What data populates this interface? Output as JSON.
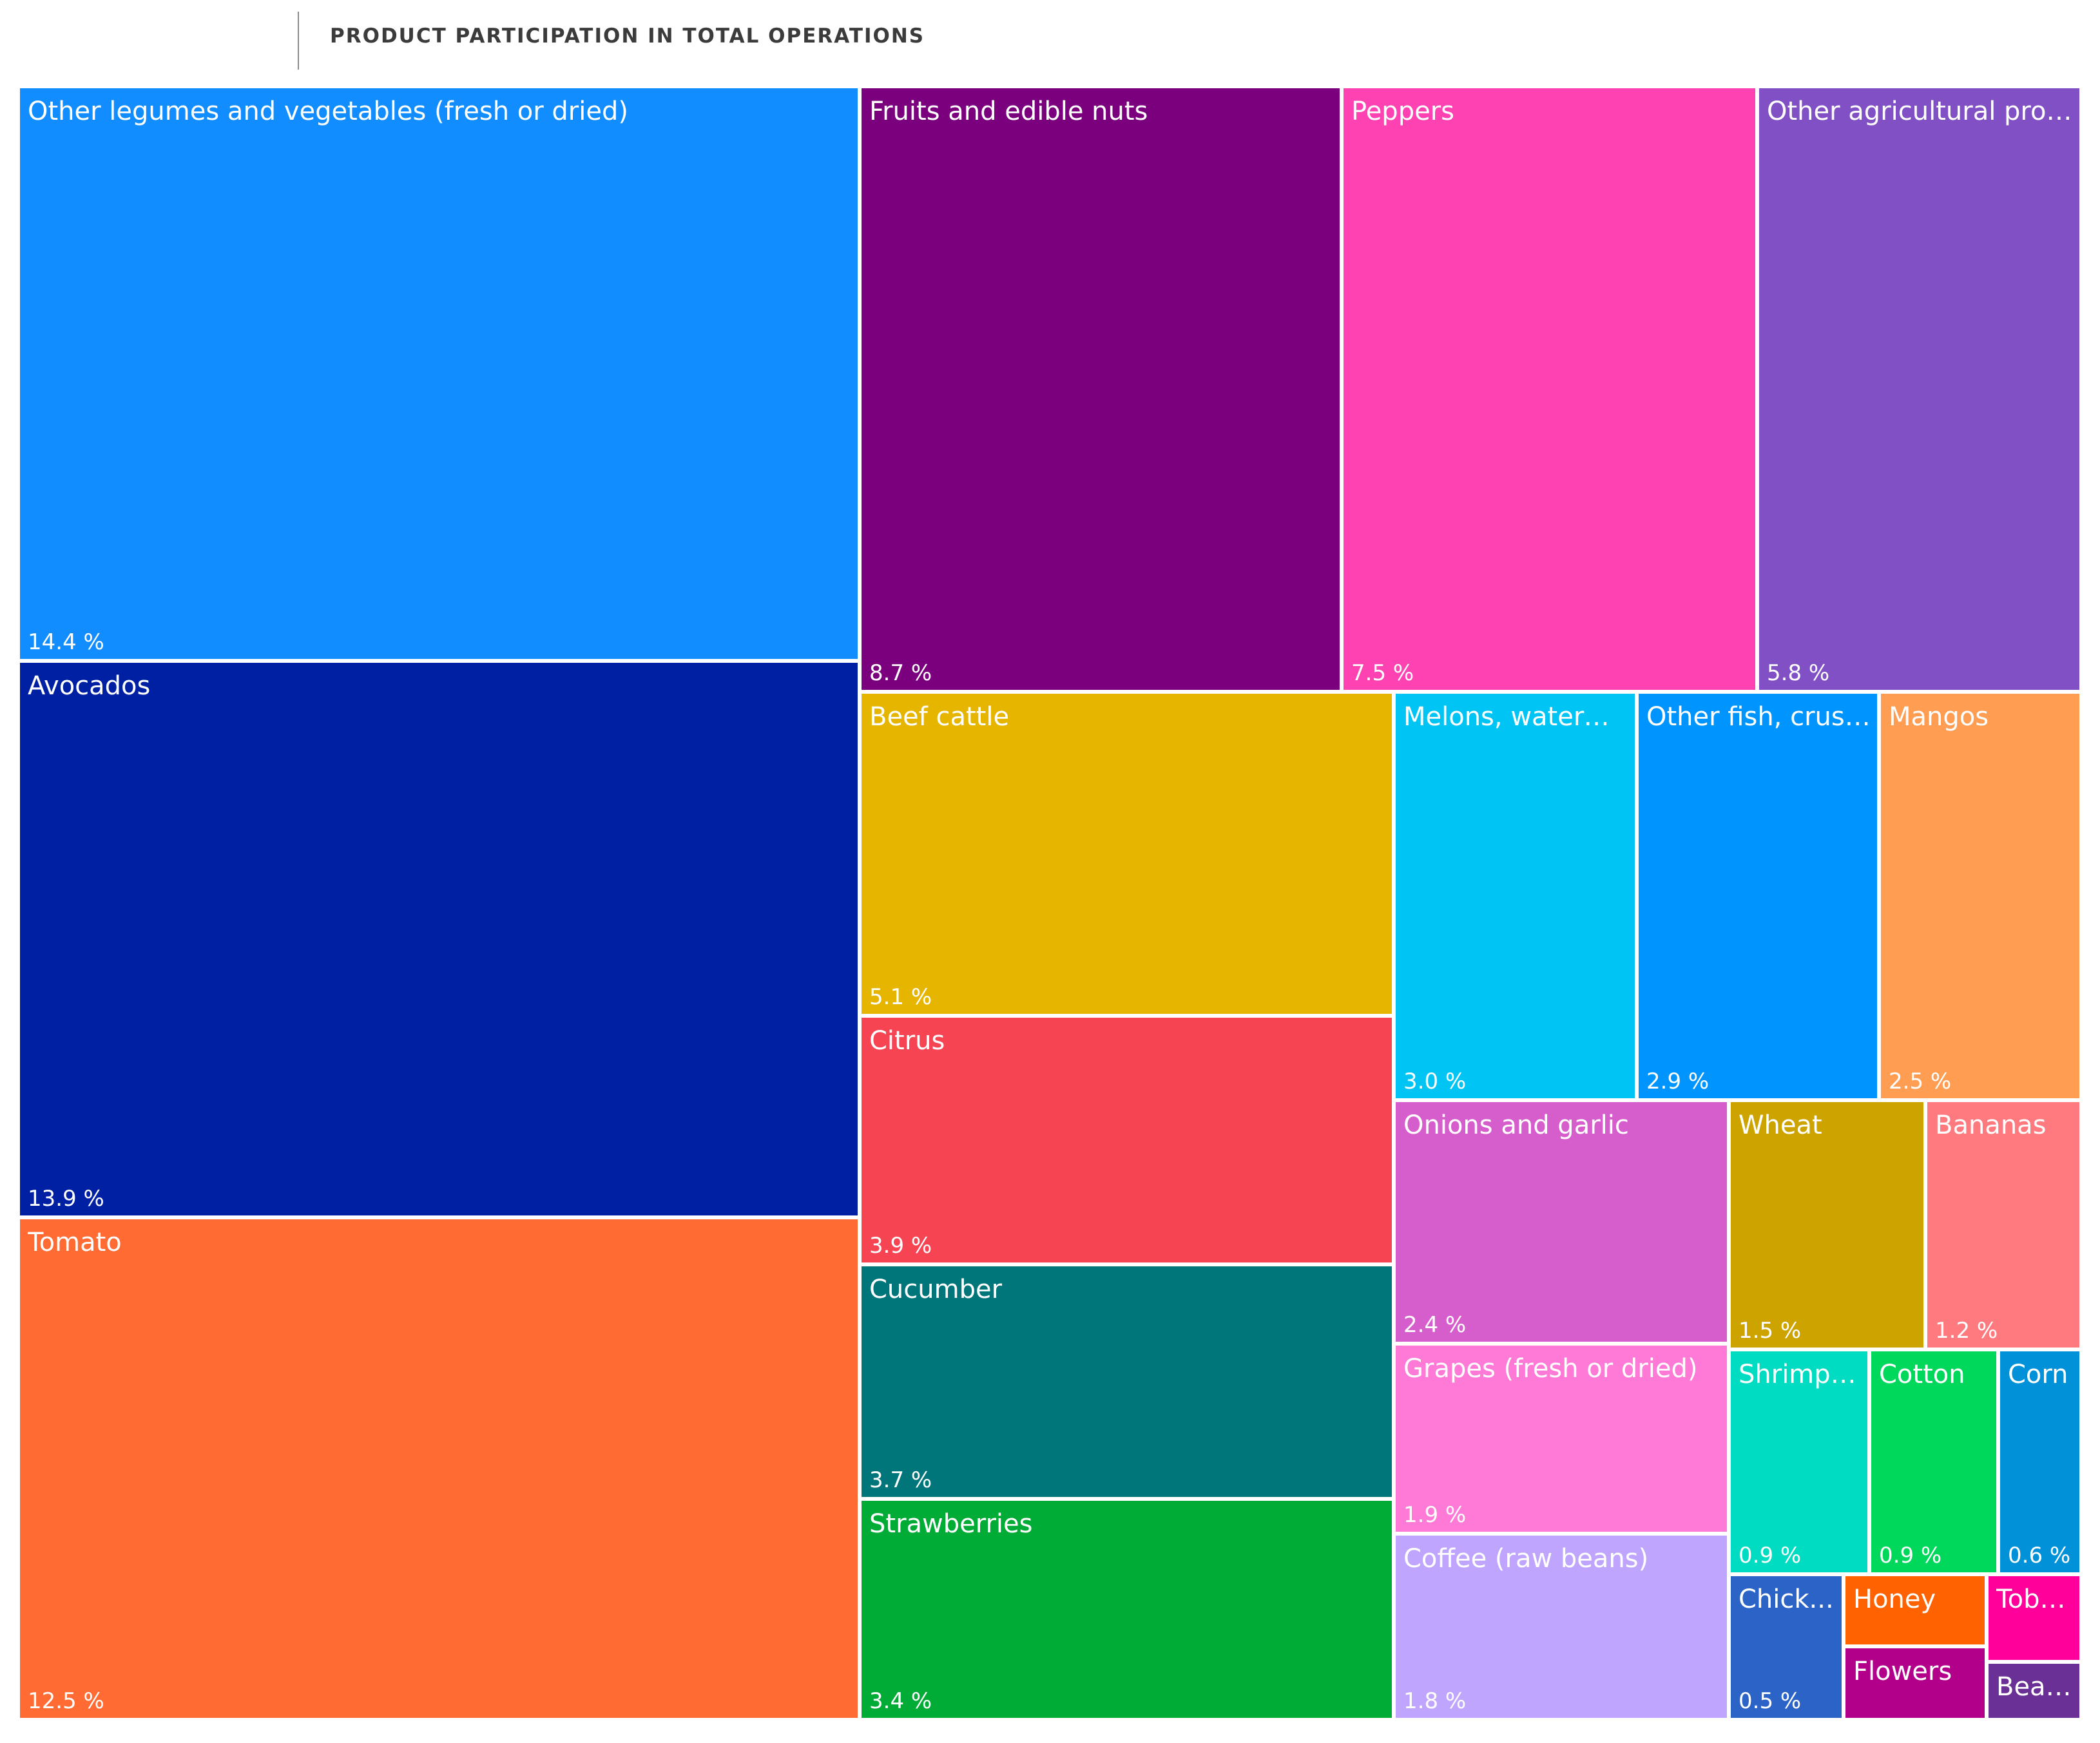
{
  "header": {
    "title": "PRODUCT PARTICIPATION IN TOTAL OPERATIONS"
  },
  "chart_data": {
    "type": "treemap",
    "title": "PRODUCT PARTICIPATION IN TOTAL OPERATIONS",
    "unit": "%",
    "items": [
      {
        "name": "Other legumes and vegetables (fresh or dried)",
        "label": "Other legumes and vegetables (fresh or dried)",
        "value": 14.4,
        "value_label": "14.4 %",
        "color": "#118DFF"
      },
      {
        "name": "Avocados",
        "label": "Avocados",
        "value": 13.9,
        "value_label": "13.9 %",
        "color": "#0020A4"
      },
      {
        "name": "Tomato",
        "label": "Tomato",
        "value": 12.5,
        "value_label": "12.5 %",
        "color": "#FF6B33"
      },
      {
        "name": "Fruits and edible nuts",
        "label": "Fruits and edible nuts",
        "value": 8.7,
        "value_label": "8.7 %",
        "color": "#7B007D"
      },
      {
        "name": "Peppers",
        "label": "Peppers",
        "value": 7.5,
        "value_label": "7.5 %",
        "color": "#FF42B1"
      },
      {
        "name": "Other agricultural products",
        "label": "Other agricultural produ...",
        "value": 5.8,
        "value_label": "5.8 %",
        "color": "#8150C5"
      },
      {
        "name": "Beef cattle",
        "label": "Beef cattle",
        "value": 5.1,
        "value_label": "5.1 %",
        "color": "#E6B500"
      },
      {
        "name": "Citrus",
        "label": "Citrus",
        "value": 3.9,
        "value_label": "3.9 %",
        "color": "#F64453"
      },
      {
        "name": "Cucumber",
        "label": "Cucumber",
        "value": 3.7,
        "value_label": "3.7 %",
        "color": "#00757A"
      },
      {
        "name": "Strawberries",
        "label": "Strawberries",
        "value": 3.4,
        "value_label": "3.4 %",
        "color": "#00AC35"
      },
      {
        "name": "Melons, watermelons",
        "label": "Melons, waterme...",
        "value": 3.0,
        "value_label": "3.0 %",
        "color": "#00C5F4"
      },
      {
        "name": "Other fish, crustaceans",
        "label": "Other fish, crusta...",
        "value": 2.9,
        "value_label": "2.9 %",
        "color": "#0094FF"
      },
      {
        "name": "Mangos",
        "label": "Mangos",
        "value": 2.5,
        "value_label": "2.5 %",
        "color": "#FF9E52"
      },
      {
        "name": "Onions and garlic",
        "label": "Onions and garlic",
        "value": 2.4,
        "value_label": "2.4 %",
        "color": "#D65ECC"
      },
      {
        "name": "Grapes (fresh or dried)",
        "label": "Grapes (fresh or dried)",
        "value": 1.9,
        "value_label": "1.9 %",
        "color": "#FF7AD7"
      },
      {
        "name": "Coffee (raw beans)",
        "label": "Coffee (raw beans)",
        "value": 1.8,
        "value_label": "1.8 %",
        "color": "#BFA5FE"
      },
      {
        "name": "Wheat",
        "label": "Wheat",
        "value": 1.5,
        "value_label": "1.5 %",
        "color": "#CDA300"
      },
      {
        "name": "Bananas",
        "label": "Bananas",
        "value": 1.2,
        "value_label": "1.2 %",
        "color": "#FF7A7E"
      },
      {
        "name": "Shrimp",
        "label": "Shrimp (...",
        "value": 0.9,
        "value_label": "0.9 %",
        "color": "#00DCC1"
      },
      {
        "name": "Cotton",
        "label": "Cotton",
        "value": 0.9,
        "value_label": "0.9 %",
        "color": "#00D85C"
      },
      {
        "name": "Corn",
        "label": "Corn",
        "value": 0.6,
        "value_label": "0.6 %",
        "color": "#0091D8"
      },
      {
        "name": "Chickpeas",
        "label": "Chick...",
        "value": 0.5,
        "value_label": "0.5 %",
        "color": "#2B63C6"
      },
      {
        "name": "Honey",
        "label": "Honey",
        "value": null,
        "value_label": "",
        "color": "#FF6200"
      },
      {
        "name": "Flowers",
        "label": "Flowers",
        "value": null,
        "value_label": "",
        "color": "#B3008A"
      },
      {
        "name": "Tobacco",
        "label": "Toba...",
        "value": null,
        "value_label": "",
        "color": "#FF009B"
      },
      {
        "name": "Beans",
        "label": "Beans",
        "value": null,
        "value_label": "",
        "color": "#6B3095"
      }
    ]
  }
}
